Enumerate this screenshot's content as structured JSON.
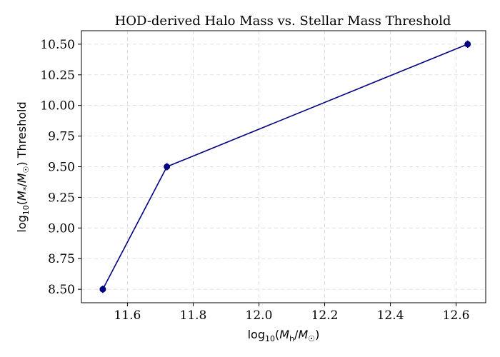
{
  "chart_data": {
    "type": "line",
    "title": "HOD-derived Halo Mass vs. Stellar Mass Threshold",
    "xlabel": "log10(Mh/M☉)",
    "ylabel": "log10(M*/M☉) Threshold",
    "xlim": [
      11.46,
      12.69
    ],
    "ylim": [
      8.39,
      10.61
    ],
    "x_ticks": [
      11.6,
      11.8,
      12.0,
      12.2,
      12.4,
      12.6
    ],
    "x_tick_labels": [
      "11.6",
      "11.8",
      "12.0",
      "12.2",
      "12.4",
      "12.6"
    ],
    "y_ticks": [
      8.5,
      8.75,
      9.0,
      9.25,
      9.5,
      9.75,
      10.0,
      10.25,
      10.5
    ],
    "y_tick_labels": [
      "8.50",
      "8.75",
      "9.00",
      "9.25",
      "9.50",
      "9.75",
      "10.00",
      "10.25",
      "10.50"
    ],
    "grid": true,
    "series": [
      {
        "color": "#000080",
        "marker": "circle",
        "points": [
          {
            "x": 11.525,
            "y": 8.5,
            "yerr": 0.03
          },
          {
            "x": 11.72,
            "y": 9.5,
            "yerr": 0.03
          },
          {
            "x": 12.635,
            "y": 10.5,
            "yerr": 0.03
          }
        ]
      }
    ]
  }
}
